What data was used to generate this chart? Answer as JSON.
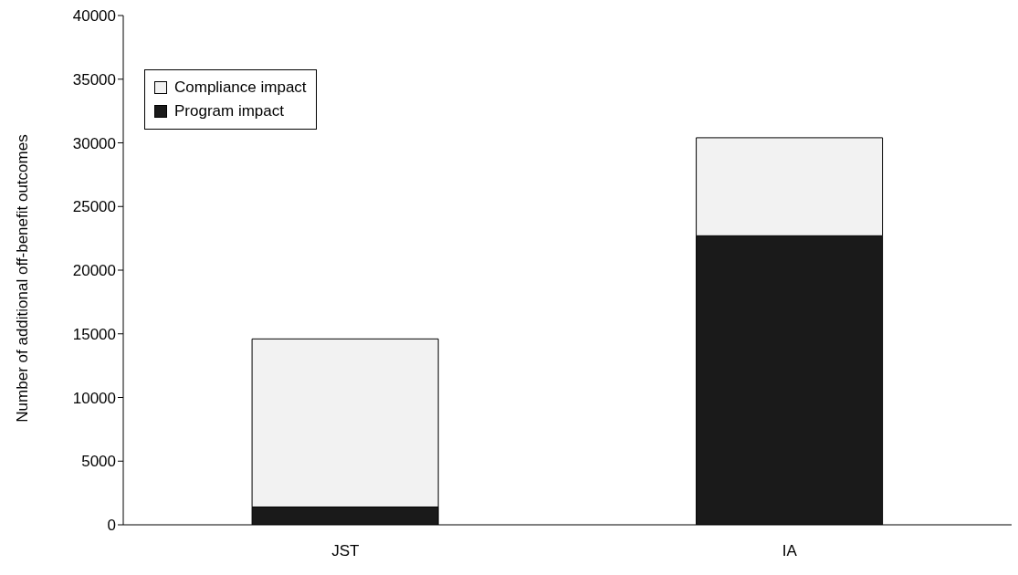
{
  "chart_data": {
    "type": "bar",
    "ylabel": "Number of additional off-benefit outcomes",
    "categories": [
      "JST",
      "IA"
    ],
    "stacked": true,
    "series": [
      {
        "name": "Program impact",
        "color": "#1a1a1a",
        "values": [
          1400,
          22700
        ]
      },
      {
        "name": "Compliance impact",
        "color": "#f2f2f2",
        "values": [
          13200,
          7700
        ]
      }
    ],
    "ylim": [
      0,
      40000
    ],
    "yticks": [
      0,
      5000,
      10000,
      15000,
      20000,
      25000,
      30000,
      35000,
      40000
    ],
    "grid": false,
    "legend": "top left"
  }
}
